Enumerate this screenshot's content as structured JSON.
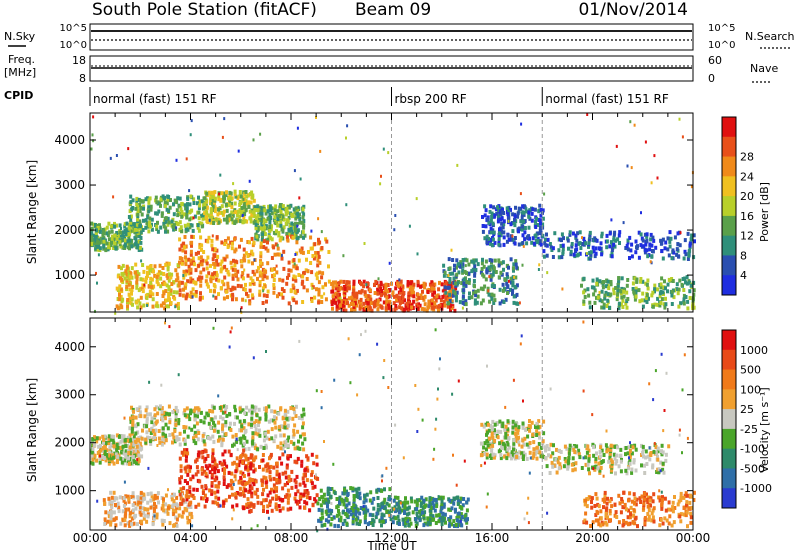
{
  "header": {
    "station": "South Pole Station (fitACF)",
    "beam": "Beam 09",
    "date": "01/Nov/2014"
  },
  "aux_panels": {
    "nsky_label": "N.Sky",
    "nsky_ticks": [
      "10^5",
      "10^0"
    ],
    "nsearch_label": "N.Search",
    "freq_label_1": "Freq.",
    "freq_label_2": "[MHz]",
    "freq_ticks": [
      "18",
      "8"
    ],
    "nave_ticks": [
      "60",
      "0"
    ],
    "nave_label": "Nave",
    "cpid_label": "CPID"
  },
  "modes": [
    {
      "label": "normal (fast) 151 RF",
      "start_hour": 0
    },
    {
      "label": "rbsp 200 RF",
      "start_hour": 12
    },
    {
      "label": "normal (fast) 151 RF",
      "start_hour": 18
    }
  ],
  "colors": {
    "power": [
      "#1f2ee0",
      "#2a4fb0",
      "#2f8f7a",
      "#5aa04a",
      "#b8cf2a",
      "#f0c020",
      "#f08a1a",
      "#e8501a",
      "#e01010"
    ],
    "velocity": [
      "#2a3bd0",
      "#2f6fa8",
      "#2e8a6a",
      "#4aa52a",
      "#c8c8c0",
      "#f0a030",
      "#f07a1a",
      "#e84a18",
      "#e01010"
    ]
  },
  "chart_data": [
    {
      "type": "heatmap",
      "title": "Power",
      "xlabel": "Time UT",
      "ylabel": "Slant Range [km]",
      "xlim": [
        0,
        24
      ],
      "ylim": [
        180,
        4600
      ],
      "x_ticks": [
        "00:00",
        "04:00",
        "08:00",
        "12:00",
        "16:00",
        "20:00",
        "00:00"
      ],
      "y_ticks": [
        1000,
        2000,
        3000,
        4000
      ],
      "colorbar_label": "Power [dB]",
      "colorbar_ticks": [
        4,
        8,
        12,
        16,
        20,
        24,
        28
      ],
      "echo_bands": [
        {
          "t0": 0.0,
          "t1": 2.0,
          "r0": 1600,
          "r1": 2200,
          "level": 3
        },
        {
          "t0": 1.5,
          "t1": 4.5,
          "r0": 2000,
          "r1": 2800,
          "level": 3
        },
        {
          "t0": 4.5,
          "t1": 6.5,
          "r0": 2200,
          "r1": 2900,
          "level": 4
        },
        {
          "t0": 6.5,
          "t1": 8.5,
          "r0": 1800,
          "r1": 2600,
          "level": 3
        },
        {
          "t0": 1.0,
          "t1": 3.5,
          "r0": 300,
          "r1": 1300,
          "level": 5
        },
        {
          "t0": 3.5,
          "t1": 6.0,
          "r0": 500,
          "r1": 1900,
          "level": 6
        },
        {
          "t0": 6.0,
          "t1": 9.5,
          "r0": 400,
          "r1": 1900,
          "level": 6
        },
        {
          "t0": 9.5,
          "t1": 12.0,
          "r0": 250,
          "r1": 900,
          "level": 7
        },
        {
          "t0": 12.0,
          "t1": 14.5,
          "r0": 250,
          "r1": 900,
          "level": 7
        },
        {
          "t0": 14.0,
          "t1": 17.0,
          "r0": 400,
          "r1": 1400,
          "level": 2
        },
        {
          "t0": 15.5,
          "t1": 18.0,
          "r0": 1700,
          "r1": 2600,
          "level": 1
        },
        {
          "t0": 18.0,
          "t1": 24.0,
          "r0": 1400,
          "r1": 2000,
          "level": 1
        },
        {
          "t0": 19.5,
          "t1": 24.0,
          "r0": 300,
          "r1": 1000,
          "level": 3
        }
      ]
    },
    {
      "type": "heatmap",
      "title": "Velocity",
      "xlabel": "Time UT",
      "ylabel": "Slant Range [km]",
      "xlim": [
        0,
        24
      ],
      "ylim": [
        180,
        4600
      ],
      "x_ticks": [
        "00:00",
        "04:00",
        "08:00",
        "12:00",
        "16:00",
        "20:00",
        "00:00"
      ],
      "y_ticks": [
        1000,
        2000,
        3000,
        4000
      ],
      "colorbar_label": "Velocity [m s⁻¹]",
      "colorbar_ticks": [
        "1000",
        "500",
        "100",
        "25",
        "-25",
        "-100",
        "-500",
        "-1000"
      ],
      "echo_bands": [
        {
          "t0": 0.0,
          "t1": 2.0,
          "r0": 1600,
          "r1": 2200,
          "level": 4
        },
        {
          "t0": 1.5,
          "t1": 5.0,
          "r0": 2000,
          "r1": 2800,
          "level": 4
        },
        {
          "t0": 5.0,
          "t1": 8.5,
          "r0": 1900,
          "r1": 2800,
          "level": 4
        },
        {
          "t0": 0.5,
          "t1": 4.0,
          "r0": 300,
          "r1": 1000,
          "level": 5
        },
        {
          "t0": 3.5,
          "t1": 6.5,
          "r0": 700,
          "r1": 1900,
          "level": 7
        },
        {
          "t0": 6.0,
          "t1": 9.0,
          "r0": 600,
          "r1": 1800,
          "level": 7
        },
        {
          "t0": 9.0,
          "t1": 12.0,
          "r0": 300,
          "r1": 1100,
          "level": 2
        },
        {
          "t0": 12.0,
          "t1": 15.0,
          "r0": 300,
          "r1": 900,
          "level": 2
        },
        {
          "t0": 15.5,
          "t1": 18.0,
          "r0": 1700,
          "r1": 2500,
          "level": 4
        },
        {
          "t0": 18.0,
          "t1": 23.0,
          "r0": 1400,
          "r1": 2000,
          "level": 4
        },
        {
          "t0": 19.5,
          "t1": 24.0,
          "r0": 300,
          "r1": 1000,
          "level": 6
        }
      ]
    }
  ]
}
